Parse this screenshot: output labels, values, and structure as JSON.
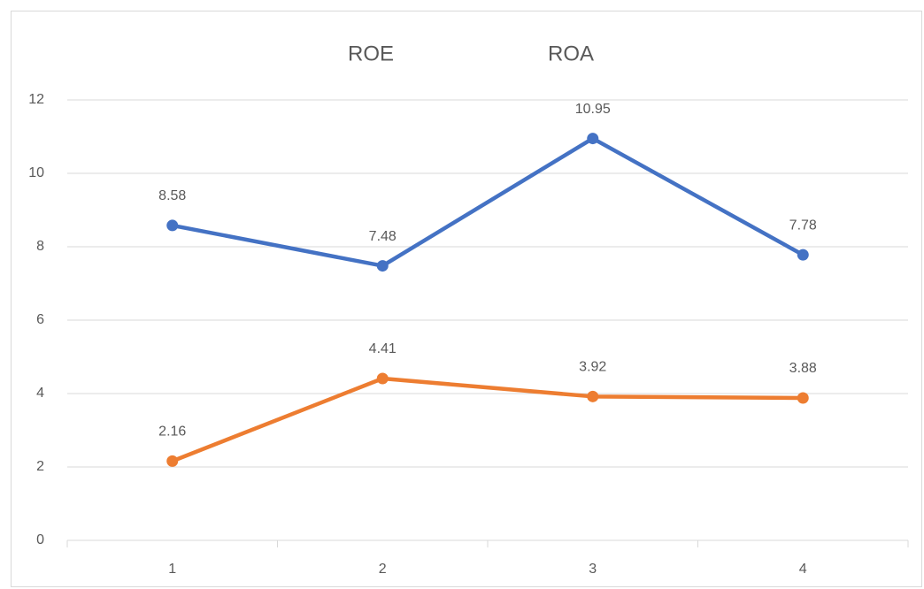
{
  "chart_data": {
    "type": "line",
    "categories": [
      "1",
      "2",
      "3",
      "4"
    ],
    "series": [
      {
        "name": "ROE",
        "color": "#4472c4",
        "values": [
          8.58,
          7.48,
          10.95,
          7.78
        ]
      },
      {
        "name": "ROA",
        "color": "#ed7d31",
        "values": [
          2.16,
          4.41,
          3.92,
          3.88
        ]
      }
    ],
    "ylim": [
      0,
      12
    ],
    "yticks": [
      0,
      2,
      4,
      6,
      8,
      10,
      12
    ],
    "grid": true,
    "legend": "top"
  }
}
